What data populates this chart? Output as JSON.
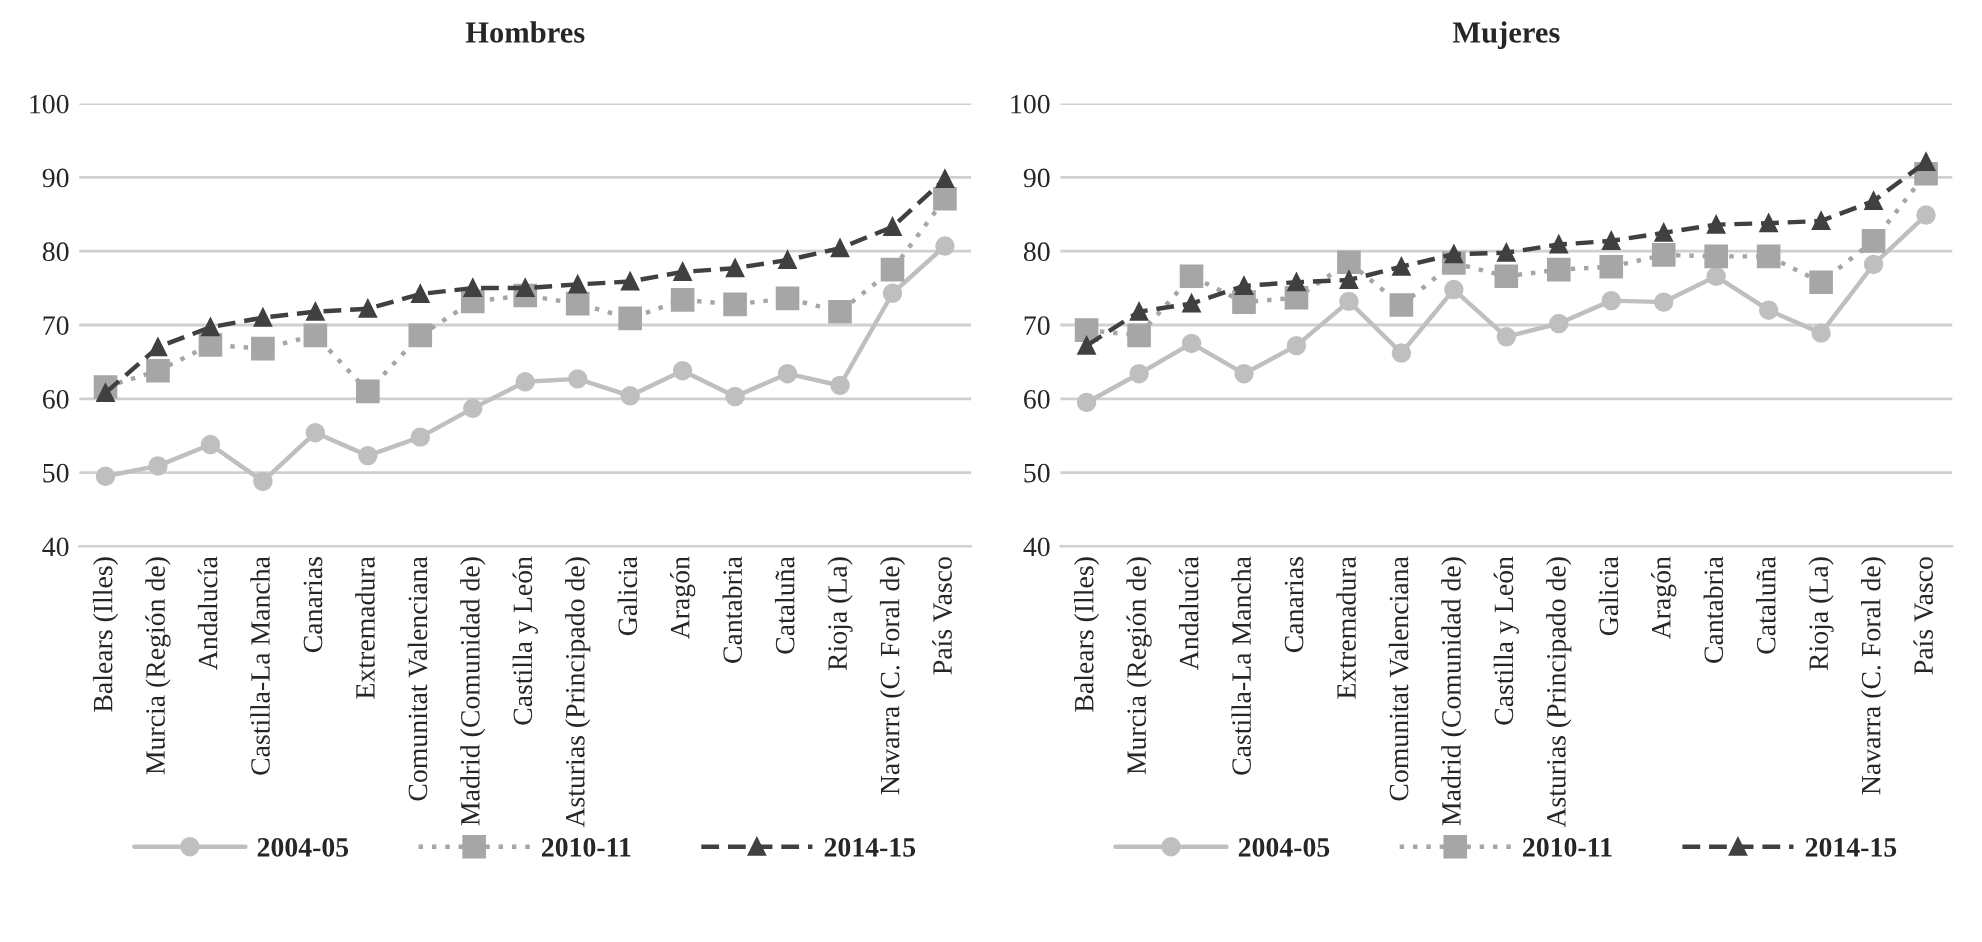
{
  "chart_data": [
    {
      "type": "line",
      "title": "Hombres",
      "categories": [
        "Balears (Illes)",
        "Murcia (Región de)",
        "Andalucía",
        "Castilla-La Mancha",
        "Canarias",
        "Extremadura",
        "Comunitat Valenciana",
        "Madrid (Comunidad de)",
        "Castilla y León",
        "Asturias (Principado de)",
        "Galicia",
        "Aragón",
        "Cantabria",
        "Cataluña",
        "Rioja (La)",
        "Navarra (C. Foral de)",
        "País Vasco"
      ],
      "series": [
        {
          "name": "2004-05",
          "color": "#bfbfbf",
          "marker": "circle",
          "line_style": "solid",
          "values": [
            49.5,
            50.9,
            53.8,
            48.8,
            55.4,
            52.3,
            54.8,
            58.7,
            62.3,
            62.7,
            60.4,
            63.8,
            60.3,
            63.4,
            61.8,
            74.3,
            80.7
          ]
        },
        {
          "name": "2010-11",
          "color": "#a6a6a6",
          "marker": "square",
          "line_style": "dotted",
          "values": [
            61.6,
            63.8,
            67.3,
            66.8,
            68.6,
            61.0,
            68.6,
            73.2,
            74.0,
            72.9,
            70.9,
            73.4,
            72.8,
            73.6,
            71.8,
            77.5,
            87.1
          ]
        },
        {
          "name": "2014-15",
          "color": "#404040",
          "marker": "triangle",
          "line_style": "dashed",
          "values": [
            60.8,
            67.0,
            69.7,
            71.0,
            71.8,
            72.2,
            74.2,
            75.0,
            75.0,
            75.5,
            75.9,
            77.2,
            77.7,
            78.8,
            80.4,
            83.3,
            89.8
          ]
        }
      ],
      "ylim": [
        40,
        100
      ],
      "yticks": [
        40,
        50,
        60,
        70,
        80,
        90,
        100
      ],
      "grid": "y",
      "legend": "bottom"
    },
    {
      "type": "line",
      "title": "Mujeres",
      "categories": [
        "Balears (Illes)",
        "Murcia (Región de)",
        "Andalucía",
        "Castilla-La Mancha",
        "Canarias",
        "Extremadura",
        "Comunitat Valenciana",
        "Madrid (Comunidad de)",
        "Castilla y León",
        "Asturias (Principado de)",
        "Galicia",
        "Aragón",
        "Cantabria",
        "Cataluña",
        "Rioja (La)",
        "Navarra (C. Foral de)",
        "País Vasco"
      ],
      "series": [
        {
          "name": "2004-05",
          "color": "#bfbfbf",
          "marker": "circle",
          "line_style": "solid",
          "values": [
            59.5,
            63.4,
            67.5,
            63.4,
            67.2,
            73.2,
            66.2,
            74.8,
            68.4,
            70.2,
            73.3,
            73.1,
            76.6,
            72.0,
            68.9,
            78.2,
            84.9
          ]
        },
        {
          "name": "2010-11",
          "color": "#a6a6a6",
          "marker": "square",
          "line_style": "dotted",
          "values": [
            69.3,
            68.6,
            76.6,
            73.1,
            73.7,
            78.5,
            72.7,
            78.4,
            76.6,
            77.5,
            77.9,
            79.5,
            79.3,
            79.3,
            75.8,
            81.4,
            90.5
          ]
        },
        {
          "name": "2014-15",
          "color": "#404040",
          "marker": "triangle",
          "line_style": "dashed",
          "values": [
            67.2,
            71.8,
            72.9,
            75.3,
            75.8,
            76.1,
            77.9,
            79.6,
            79.8,
            80.9,
            81.4,
            82.5,
            83.6,
            83.8,
            84.1,
            86.8,
            92.1
          ]
        }
      ],
      "ylim": [
        40,
        100
      ],
      "yticks": [
        40,
        50,
        60,
        70,
        80,
        90,
        100
      ],
      "grid": "y",
      "legend": "bottom"
    }
  ]
}
